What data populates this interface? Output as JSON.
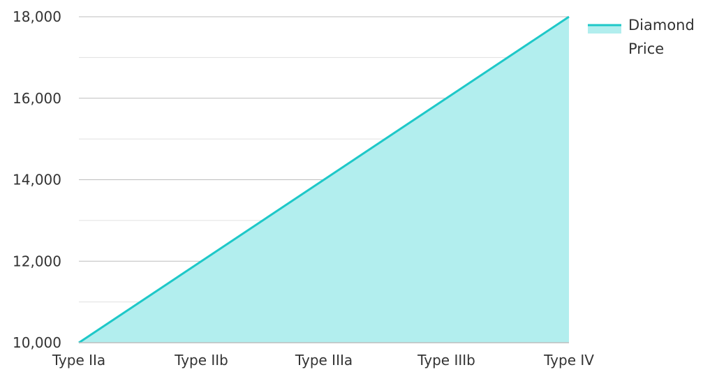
{
  "chart_data": {
    "type": "area",
    "title": "",
    "xlabel": "",
    "ylabel": "",
    "categories": [
      "Type IIa",
      "Type IIb",
      "Type IIIa",
      "Type IIIb",
      "Type IV"
    ],
    "series": [
      {
        "name": "Diamond Price",
        "values": [
          10000,
          12000,
          14000,
          16000,
          18000
        ]
      }
    ],
    "y_ticks": [
      "10,000",
      "12,000",
      "14,000",
      "16,000",
      "18,000"
    ],
    "ylim": [
      10000,
      18000
    ],
    "grid": true,
    "legend_position": "right",
    "legend": {
      "line1": "Diamond",
      "line2": "Price"
    },
    "colors": {
      "line": "#1ec8c8",
      "fill": "#b2eeee",
      "major_grid": "#bdbdbd",
      "minor_grid": "#e0e0e0",
      "axis": "#bdbdbd"
    }
  }
}
